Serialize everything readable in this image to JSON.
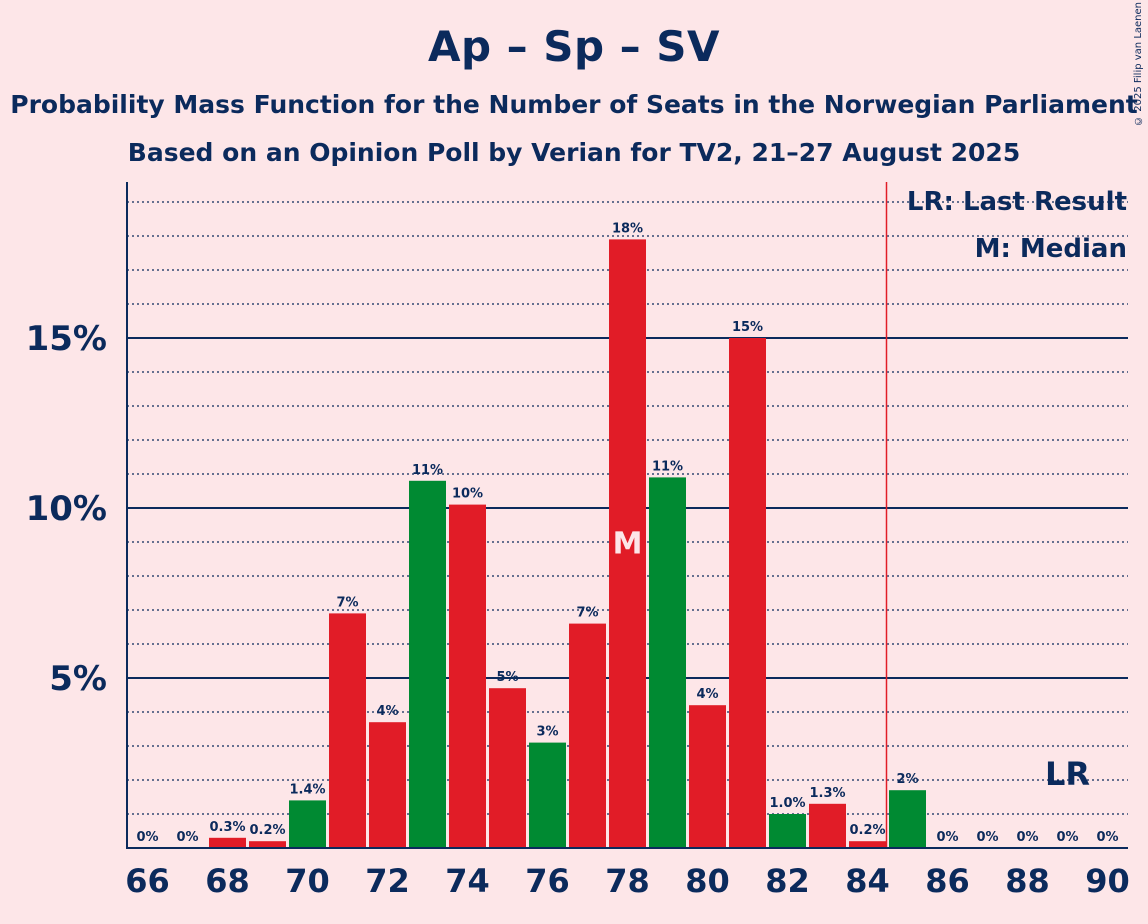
{
  "chart_data": {
    "type": "bar",
    "title": "Ap – Sp – SV",
    "subtitle1": "Probability Mass Function for the Number of Seats in the Norwegian Parliament",
    "subtitle2": "Based on an Opinion Poll by Verian for TV2, 21–27 August 2025",
    "copyright": "© 2025 Filip van Laenen",
    "x": [
      66,
      67,
      68,
      69,
      70,
      71,
      72,
      73,
      74,
      75,
      76,
      77,
      78,
      79,
      80,
      81,
      82,
      83,
      84,
      85,
      86,
      87,
      88,
      89,
      90
    ],
    "values": [
      0,
      0,
      0.3,
      0.2,
      1.4,
      6.9,
      3.7,
      10.8,
      10.1,
      4.7,
      3.1,
      6.6,
      17.9,
      10.9,
      4.2,
      15.0,
      1.0,
      1.3,
      0.2,
      1.7,
      0,
      0,
      0,
      0,
      0
    ],
    "labels": [
      "0%",
      "0%",
      "0.3%",
      "0.2%",
      "1.4%",
      "7%",
      "4%",
      "11%",
      "10%",
      "5%",
      "3%",
      "7%",
      "18%",
      "11%",
      "4%",
      "15%",
      "1.0%",
      "1.3%",
      "0.2%",
      "2%",
      "0%",
      "0%",
      "0%",
      "0%",
      "0%"
    ],
    "colors": [
      "#E11C27",
      "#E11C27",
      "#E11C27",
      "#E11C27",
      "#008A32",
      "#E11C27",
      "#E11C27",
      "#008A32",
      "#E11C27",
      "#E11C27",
      "#008A32",
      "#E11C27",
      "#E11C27",
      "#008A32",
      "#E11C27",
      "#E11C27",
      "#008A32",
      "#E11C27",
      "#E11C27",
      "#008A32",
      "#E11C27",
      "#E11C27",
      "#E11C27",
      "#E11C27",
      "#E11C27"
    ],
    "x_tick_labels": [
      "66",
      "68",
      "70",
      "72",
      "74",
      "76",
      "78",
      "80",
      "82",
      "84",
      "86",
      "88",
      "90"
    ],
    "y_tick_values": [
      5,
      10,
      15
    ],
    "y_tick_labels": [
      "5%",
      "10%",
      "15%"
    ],
    "ylim": [
      0,
      19.5
    ],
    "median_seat": 78,
    "median_label": "M",
    "last_result_seat": 89,
    "last_result_label": "LR",
    "threshold_seat": 84.5,
    "legend": [
      "LR: Last Result",
      "M: Median"
    ]
  }
}
